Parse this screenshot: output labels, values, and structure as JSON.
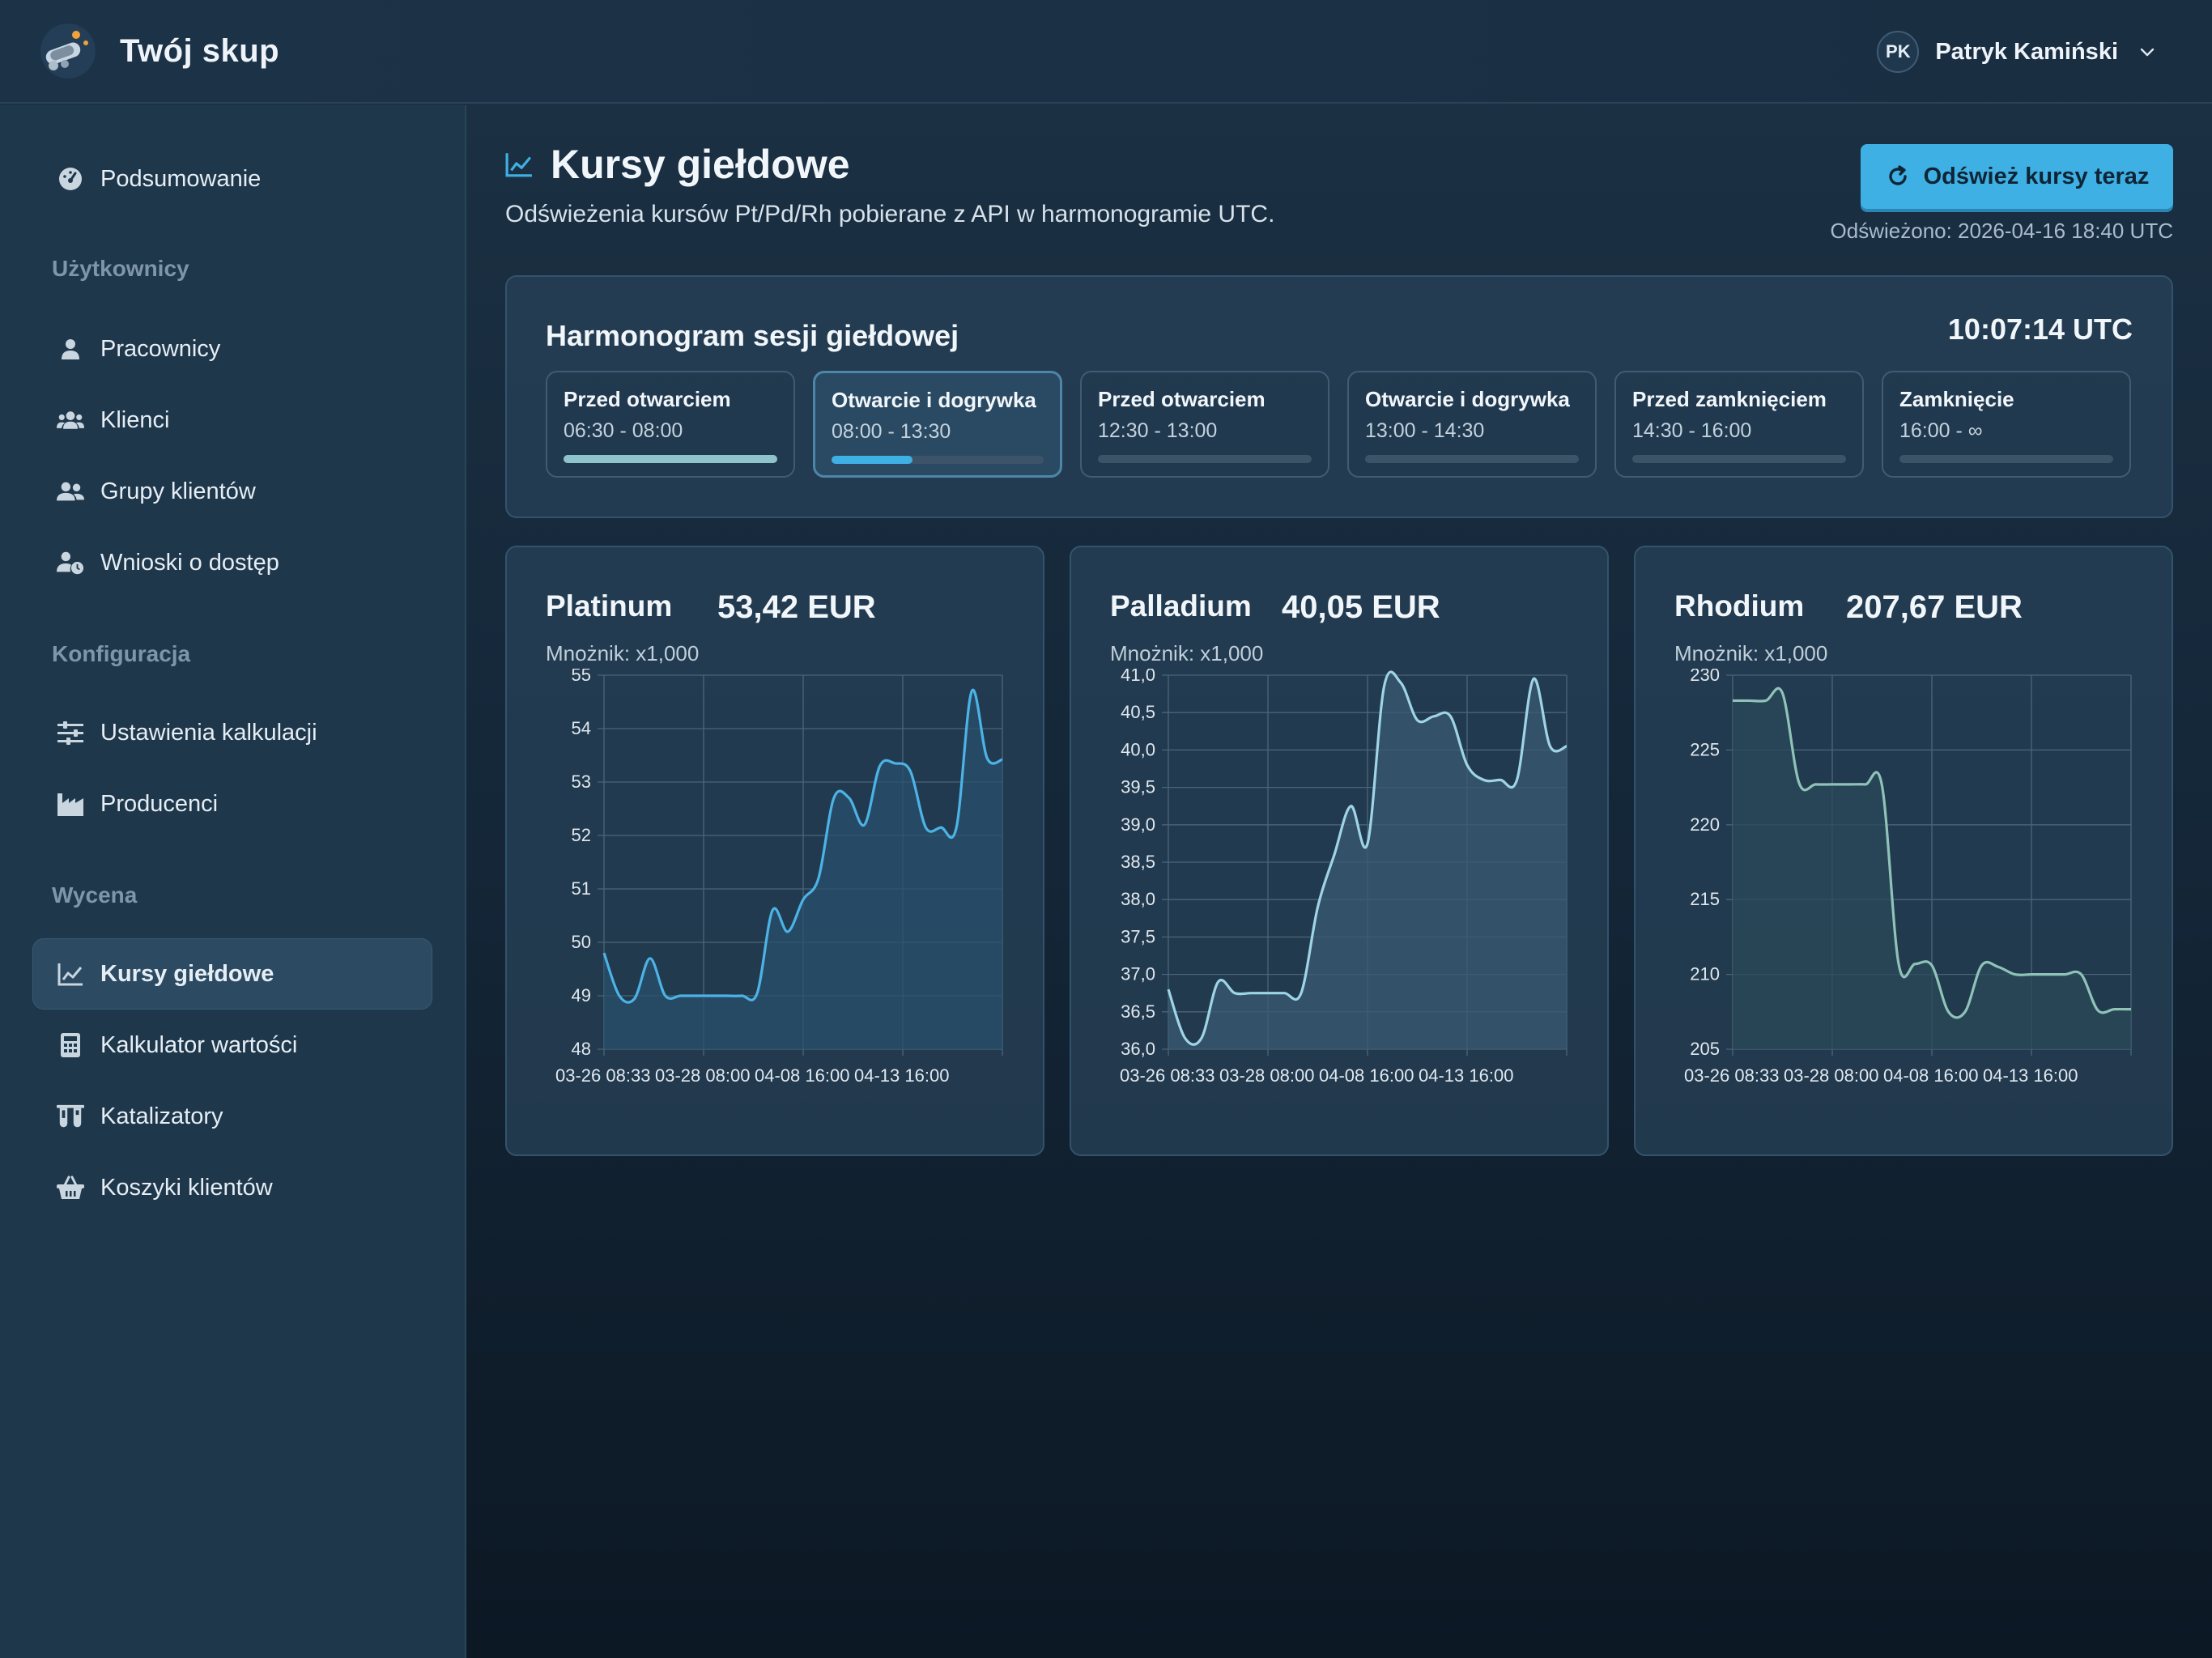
{
  "app": {
    "name": "Twój skup"
  },
  "user": {
    "initials": "PK",
    "name": "Patryk Kamiński"
  },
  "sidebar": {
    "top_item": {
      "label": "Podsumowanie",
      "icon": "gauge-icon"
    },
    "sections": [
      {
        "title": "Użytkownicy",
        "items": [
          {
            "label": "Pracownicy",
            "icon": "user-icon"
          },
          {
            "label": "Klienci",
            "icon": "users-icon"
          },
          {
            "label": "Grupy klientów",
            "icon": "user-group-icon"
          },
          {
            "label": "Wnioski o dostęp",
            "icon": "user-clock-icon"
          }
        ]
      },
      {
        "title": "Konfiguracja",
        "items": [
          {
            "label": "Ustawienia kalkulacji",
            "icon": "sliders-icon"
          },
          {
            "label": "Producenci",
            "icon": "factory-icon"
          }
        ]
      },
      {
        "title": "Wycena",
        "items": [
          {
            "label": "Kursy giełdowe",
            "icon": "chart-line-icon",
            "active": true
          },
          {
            "label": "Kalkulator wartości",
            "icon": "calculator-icon"
          },
          {
            "label": "Katalizatory",
            "icon": "flask-icon"
          },
          {
            "label": "Koszyki klientów",
            "icon": "basket-icon"
          }
        ]
      }
    ]
  },
  "page": {
    "title": "Kursy giełdowe",
    "subtitle": "Odświeżenia kursów Pt/Pd/Rh pobierane z API w harmonogramie UTC.",
    "refresh_button": "Odśwież kursy teraz",
    "refreshed_at": "Odświeżono: 2026-04-16 18:40 UTC"
  },
  "schedule": {
    "title": "Harmonogram sesji giełdowej",
    "clock": "10:07:14 UTC",
    "sessions": [
      {
        "name": "Przed otwarciem",
        "time": "06:30 - 08:00",
        "progress": 1.0,
        "active": false
      },
      {
        "name": "Otwarcie i dogrywka",
        "time": "08:00 - 13:30",
        "progress": 0.38,
        "active": true
      },
      {
        "name": "Przed otwarciem",
        "time": "12:30 - 13:00",
        "progress": 0,
        "active": false
      },
      {
        "name": "Otwarcie i dogrywka",
        "time": "13:00 - 14:30",
        "progress": 0,
        "active": false
      },
      {
        "name": "Przed zamknięciem",
        "time": "14:30 - 16:00",
        "progress": 0,
        "active": false
      },
      {
        "name": "Zamknięcie",
        "time": "16:00 - ∞",
        "progress": 0,
        "active": false
      }
    ],
    "colors": {
      "done": "#8fc3cc",
      "active": "#3fb0e4",
      "track": "#3d5468"
    }
  },
  "charts": [
    {
      "metal": "Platinum",
      "price": "53,42 EUR",
      "multiplier": "Mnożnik: x1,000"
    },
    {
      "metal": "Palladium",
      "price": "40,05 EUR",
      "multiplier": "Mnożnik: x1,000"
    },
    {
      "metal": "Rhodium",
      "price": "207,67 EUR",
      "multiplier": "Mnożnik: x1,000"
    }
  ],
  "chart_data": [
    {
      "type": "area",
      "title": "Platinum",
      "x_tick_labels": [
        "03-26 08:33",
        "03-28 08:00",
        "04-08 16:00",
        "04-13 16:00"
      ],
      "ylim": [
        48,
        55
      ],
      "y_ticks": [
        "48",
        "49",
        "50",
        "51",
        "52",
        "53",
        "54",
        "55"
      ],
      "grid": true,
      "color": "#4cb3e6",
      "fill": "#28506c",
      "series": [
        {
          "values": [
            49.8,
            49.0,
            48.95,
            49.7,
            49.0,
            49.0,
            49.0,
            49.0,
            49.0,
            49.0,
            49.05,
            50.6,
            50.2,
            50.8,
            51.2,
            52.7,
            52.7,
            52.2,
            53.3,
            53.35,
            53.2,
            52.15,
            52.15,
            52.15,
            54.7,
            53.45,
            53.42
          ]
        }
      ]
    },
    {
      "type": "area",
      "title": "Palladium",
      "x_tick_labels": [
        "03-26 08:33",
        "03-28 08:00",
        "04-08 16:00",
        "04-13 16:00"
      ],
      "ylim": [
        36.0,
        41.0
      ],
      "y_ticks": [
        "36,0",
        "36,5",
        "37,0",
        "37,5",
        "38,0",
        "38,5",
        "39,0",
        "39,5",
        "40,0",
        "40,5",
        "41,0"
      ],
      "grid": true,
      "color": "#9fd4e6",
      "fill": "#3a5a72",
      "series": [
        {
          "values": [
            36.8,
            36.15,
            36.15,
            36.9,
            36.75,
            36.75,
            36.75,
            36.75,
            36.75,
            37.9,
            38.6,
            39.25,
            38.75,
            40.85,
            40.9,
            40.4,
            40.45,
            40.45,
            39.8,
            39.6,
            39.6,
            39.6,
            40.95,
            40.05,
            40.05
          ]
        }
      ]
    },
    {
      "type": "area",
      "title": "Rhodium",
      "x_tick_labels": [
        "03-26 08:33",
        "03-28 08:00",
        "04-08 16:00",
        "04-13 16:00"
      ],
      "ylim": [
        205,
        230
      ],
      "y_ticks": [
        "205",
        "210",
        "215",
        "220",
        "225",
        "230"
      ],
      "grid": true,
      "color": "#8fc3b8",
      "fill": "#2b4a5a",
      "series": [
        {
          "values": [
            228.3,
            228.3,
            228.3,
            228.8,
            222.8,
            222.7,
            222.7,
            222.7,
            222.7,
            222.6,
            210.7,
            210.7,
            210.6,
            207.5,
            207.5,
            210.6,
            210.5,
            210.0,
            210.0,
            210.0,
            210.0,
            210.0,
            207.6,
            207.67,
            207.67
          ]
        }
      ]
    }
  ]
}
